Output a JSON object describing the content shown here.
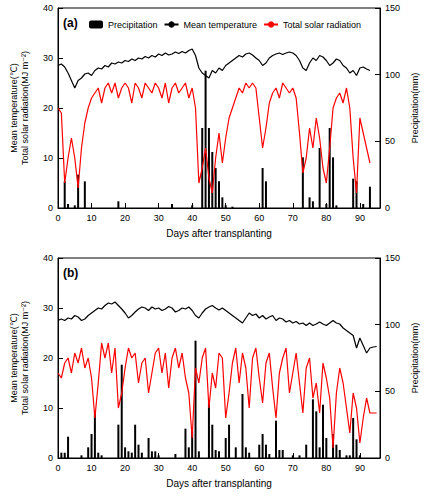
{
  "chart_data": [
    {
      "type": "combo",
      "title": "(a)",
      "xlabel": "Days after transplanting",
      "ylabel": "Mean temperature(℃)\nTotal solar radiation(MJ m⁻²)",
      "y2label": "Precipitation(mm)",
      "xlim": [
        0,
        96
      ],
      "xticks": [
        0,
        10,
        20,
        30,
        40,
        50,
        60,
        70,
        80,
        90
      ],
      "ylim": [
        0,
        40
      ],
      "yticks": [
        0,
        10,
        20,
        30,
        40
      ],
      "y2lim": [
        0,
        150
      ],
      "y2ticks": [
        0,
        50,
        100,
        150
      ],
      "grid": false,
      "legend": "top",
      "x": [
        0,
        1,
        2,
        3,
        4,
        5,
        6,
        7,
        8,
        9,
        10,
        11,
        12,
        13,
        14,
        15,
        16,
        17,
        18,
        19,
        20,
        21,
        22,
        23,
        24,
        25,
        26,
        27,
        28,
        29,
        30,
        31,
        32,
        33,
        34,
        35,
        36,
        37,
        38,
        39,
        40,
        41,
        42,
        43,
        44,
        45,
        46,
        47,
        48,
        49,
        50,
        51,
        52,
        53,
        54,
        55,
        56,
        57,
        58,
        59,
        60,
        61,
        62,
        63,
        64,
        65,
        66,
        67,
        68,
        69,
        70,
        71,
        72,
        73,
        74,
        75,
        76,
        77,
        78,
        79,
        80,
        81,
        82,
        83,
        84,
        85,
        86,
        87,
        88,
        89,
        90,
        91,
        92,
        93
      ],
      "series": [
        {
          "name": "Precipitation",
          "type": "bar",
          "axis": "y2",
          "color": "#000000",
          "values": [
            0,
            0,
            20,
            3,
            0,
            2,
            25,
            0,
            20,
            0,
            0,
            0,
            0,
            0,
            0,
            0,
            0,
            0,
            5,
            0,
            0,
            0,
            0,
            0,
            0,
            0,
            0,
            0,
            0,
            0,
            0,
            0,
            0,
            0,
            3,
            0,
            0,
            0,
            0,
            0,
            2,
            0,
            0,
            60,
            103,
            60,
            42,
            30,
            20,
            8,
            2,
            0,
            1,
            0,
            0,
            0,
            0,
            0,
            0,
            0,
            0,
            30,
            20,
            0,
            0,
            0,
            0,
            0,
            0,
            0,
            0,
            0,
            0,
            38,
            0,
            8,
            5,
            0,
            45,
            0,
            3,
            60,
            38,
            2,
            0,
            0,
            0,
            0,
            22,
            20,
            0,
            3,
            0,
            16
          ]
        },
        {
          "name": "Mean temperature",
          "type": "line",
          "color": "#000000",
          "marker": "none",
          "line_style": "solid",
          "values": [
            28.5,
            28.8,
            28.2,
            27.0,
            25.5,
            24.0,
            25.5,
            26.0,
            26.8,
            27.0,
            26.5,
            27.5,
            28.0,
            27.8,
            28.5,
            28.2,
            29.0,
            28.8,
            29.2,
            29.0,
            29.5,
            29.3,
            29.8,
            29.5,
            30.0,
            29.8,
            30.3,
            30.0,
            30.5,
            30.2,
            30.8,
            30.5,
            31.0,
            30.6,
            30.8,
            31.2,
            30.9,
            31.3,
            31.0,
            31.5,
            31.8,
            30.5,
            28.0,
            27.0,
            26.5,
            26.0,
            27.5,
            27.0,
            28.0,
            27.5,
            28.5,
            29.0,
            29.5,
            30.0,
            30.5,
            30.2,
            30.8,
            31.0,
            30.6,
            30.0,
            29.5,
            28.5,
            29.0,
            30.0,
            30.5,
            30.8,
            31.0,
            30.7,
            31.0,
            31.2,
            31.0,
            30.5,
            29.5,
            28.0,
            27.5,
            29.0,
            30.0,
            29.5,
            30.5,
            30.2,
            29.5,
            28.5,
            29.0,
            29.8,
            29.5,
            28.5,
            28.0,
            27.0,
            27.5,
            26.5,
            28.0,
            28.2,
            27.8,
            27.5
          ]
        },
        {
          "name": "Total solar radiation",
          "type": "line",
          "color": "#ff0000",
          "marker": "none",
          "line_style": "solid",
          "values": [
            20,
            19,
            5,
            10,
            14,
            10,
            4,
            12,
            17,
            20,
            22,
            23,
            24,
            21,
            24,
            25,
            23,
            25,
            22,
            24,
            25,
            24,
            21,
            25,
            24,
            22,
            25,
            24,
            23,
            25,
            24,
            22,
            25,
            21,
            24,
            25,
            23,
            24,
            25,
            22,
            24,
            20,
            5,
            8,
            12,
            6,
            3,
            10,
            15,
            9,
            14,
            18,
            20,
            22,
            24,
            23,
            25,
            24,
            25,
            24,
            18,
            12,
            16,
            21,
            23,
            24,
            22,
            25,
            24,
            23,
            24,
            22,
            15,
            7,
            10,
            16,
            12,
            18,
            14,
            8,
            5,
            12,
            20,
            22,
            23,
            21,
            24,
            20,
            10,
            3,
            18,
            15,
            12,
            9
          ]
        }
      ]
    },
    {
      "type": "combo",
      "title": "(b)",
      "xlabel": "Days after transplanting",
      "ylabel": "Mean temperature(℃)\nTotal solar radiation(MJ m⁻²)",
      "y2label": "Precipitation(mm)",
      "xlim": [
        0,
        96
      ],
      "xticks": [
        0,
        10,
        20,
        30,
        40,
        50,
        60,
        70,
        80,
        90
      ],
      "ylim": [
        0,
        40
      ],
      "yticks": [
        0,
        10,
        20,
        30,
        40
      ],
      "y2lim": [
        0,
        150
      ],
      "y2ticks": [
        0,
        50,
        100,
        150
      ],
      "grid": false,
      "x": [
        0,
        1,
        2,
        3,
        4,
        5,
        6,
        7,
        8,
        9,
        10,
        11,
        12,
        13,
        14,
        15,
        16,
        17,
        18,
        19,
        20,
        21,
        22,
        23,
        24,
        25,
        26,
        27,
        28,
        29,
        30,
        31,
        32,
        33,
        34,
        35,
        36,
        37,
        38,
        39,
        40,
        41,
        42,
        43,
        44,
        45,
        46,
        47,
        48,
        49,
        50,
        51,
        52,
        53,
        54,
        55,
        56,
        57,
        58,
        59,
        60,
        61,
        62,
        63,
        64,
        65,
        66,
        67,
        68,
        69,
        70,
        71,
        72,
        73,
        74,
        75,
        76,
        77,
        78,
        79,
        80,
        81,
        82,
        83,
        84,
        85,
        86,
        87,
        88,
        89,
        90,
        91,
        92,
        93,
        94,
        95
      ],
      "series": [
        {
          "name": "Precipitation",
          "type": "bar",
          "axis": "y2",
          "color": "#000000",
          "values": [
            0,
            4,
            4,
            16,
            0,
            0,
            0,
            2,
            0,
            8,
            18,
            34,
            4,
            2,
            0,
            0,
            0,
            0,
            25,
            70,
            8,
            5,
            4,
            25,
            10,
            4,
            0,
            15,
            5,
            5,
            2,
            0,
            0,
            0,
            0,
            3,
            0,
            0,
            22,
            8,
            20,
            88,
            5,
            0,
            0,
            42,
            25,
            6,
            5,
            0,
            15,
            25,
            0,
            8,
            0,
            48,
            8,
            4,
            0,
            0,
            10,
            18,
            10,
            3,
            0,
            28,
            6,
            6,
            0,
            0,
            2,
            0,
            2,
            0,
            10,
            0,
            44,
            35,
            8,
            40,
            15,
            0,
            18,
            10,
            6,
            0,
            2,
            2,
            30,
            14,
            2,
            0,
            0,
            0,
            0,
            0
          ]
        },
        {
          "name": "Mean temperature",
          "type": "line",
          "color": "#000000",
          "marker": "none",
          "line_style": "solid",
          "values": [
            27.5,
            27.8,
            27.5,
            28.0,
            27.8,
            28.5,
            28.2,
            27.5,
            27.8,
            28.5,
            29.0,
            29.5,
            30.0,
            29.8,
            30.5,
            31.0,
            30.8,
            31.2,
            30.5,
            29.8,
            29.0,
            28.0,
            28.5,
            29.2,
            29.8,
            30.2,
            30.0,
            29.5,
            30.2,
            29.8,
            30.0,
            29.5,
            29.8,
            30.3,
            30.0,
            29.2,
            29.5,
            30.0,
            29.8,
            30.2,
            29.5,
            28.5,
            28.0,
            29.0,
            29.8,
            30.2,
            30.5,
            30.0,
            29.6,
            30.0,
            29.5,
            29.0,
            28.5,
            28.0,
            27.5,
            27.0,
            28.0,
            29.0,
            28.5,
            28.8,
            28.0,
            28.5,
            27.8,
            28.2,
            28.5,
            27.5,
            28.0,
            27.8,
            27.2,
            27.5,
            27.0,
            27.3,
            26.8,
            27.0,
            26.5,
            27.0,
            26.5,
            26.8,
            27.2,
            26.8,
            26.5,
            27.0,
            27.5,
            27.0,
            26.8,
            26.0,
            25.5,
            25.0,
            24.5,
            22.0,
            24.0,
            22.5,
            21.0,
            22.0,
            22.2,
            22.3
          ]
        },
        {
          "name": "Total solar radiation",
          "type": "line",
          "color": "#ff0000",
          "marker": "none",
          "line_style": "solid",
          "values": [
            17,
            16,
            19,
            20,
            17,
            21,
            19,
            22,
            18,
            20,
            16,
            8,
            15,
            23,
            20,
            23,
            17,
            22,
            10,
            13,
            18,
            22,
            20,
            21,
            15,
            19,
            20,
            13,
            17,
            21,
            22,
            17,
            21,
            14,
            20,
            22,
            18,
            21,
            16,
            13,
            4,
            18,
            15,
            20,
            22,
            10,
            17,
            14,
            21,
            20,
            8,
            13,
            19,
            22,
            15,
            21,
            18,
            10,
            20,
            22,
            16,
            11,
            19,
            21,
            14,
            8,
            17,
            20,
            22,
            13,
            17,
            21,
            15,
            9,
            18,
            20,
            12,
            15,
            9,
            19,
            16,
            12,
            2,
            13,
            18,
            15,
            10,
            5,
            13,
            10,
            3,
            8,
            12,
            9,
            9,
            9
          ]
        }
      ]
    }
  ]
}
